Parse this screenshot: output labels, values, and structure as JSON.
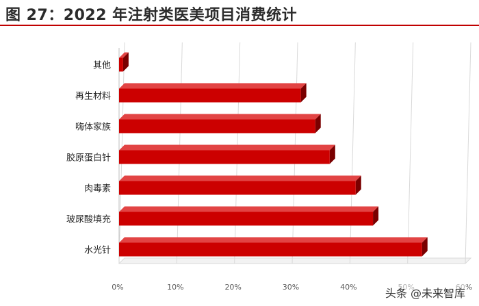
{
  "title": "图 27：2022 年注射类医美项目消费统计",
  "watermark": "头条 @未来智库",
  "colors": {
    "bar_front": "#cc0000",
    "bar_top": "#e24444",
    "bar_side": "#7a0000",
    "title_rule": "#c00000"
  },
  "chart_data": {
    "type": "bar",
    "orientation": "horizontal",
    "categories": [
      "其他",
      "再生材料",
      "嗨体家族",
      "胶原蛋白针",
      "肉毒素",
      "玻尿酸填充",
      "水光针"
    ],
    "values": [
      0.7,
      31.5,
      34,
      36.5,
      41,
      44,
      52.5
    ],
    "xlim": [
      0,
      60
    ],
    "x_ticks": [
      "0%",
      "10%",
      "20%",
      "30%",
      "40%",
      "50%",
      "60%"
    ],
    "grid": true,
    "title": "",
    "xlabel": "",
    "ylabel": ""
  }
}
